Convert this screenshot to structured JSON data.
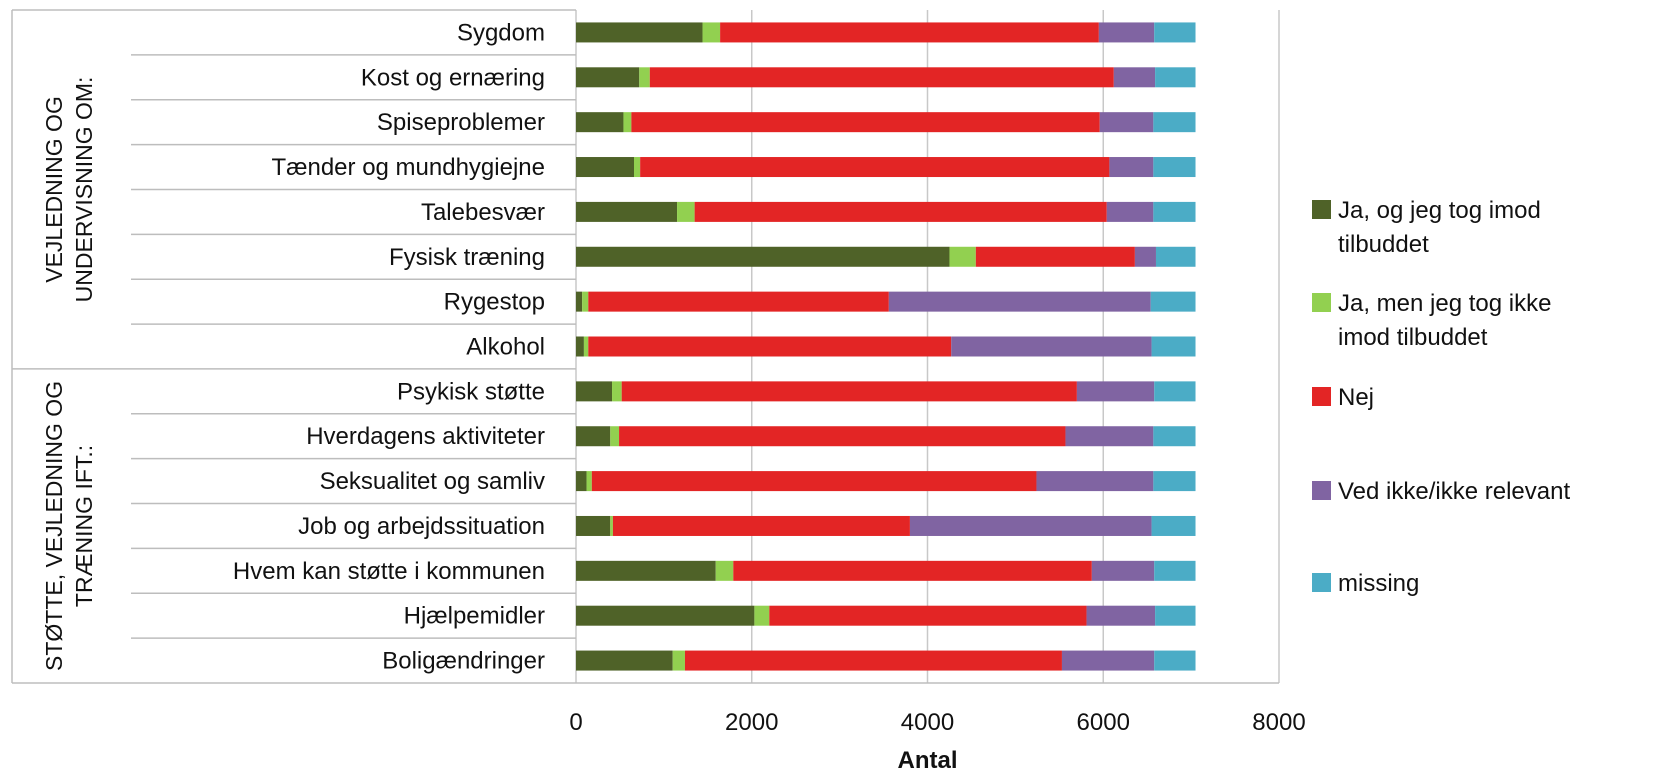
{
  "chart_data": {
    "type": "bar",
    "orientation": "horizontal",
    "stacked": true,
    "xlabel": "Antal",
    "xlim": [
      0,
      8000
    ],
    "xticks": [
      0,
      2000,
      4000,
      6000,
      8000
    ],
    "grid": true,
    "legend_position": "right",
    "groups": [
      {
        "label": "VEJLEDNING OG UNDERVISNING OM:",
        "categories": [
          "Sygdom",
          "Kost og ernæring",
          "Spiseproblemer",
          "Tænder og mundhygiejne",
          "Talebesvær",
          "Fysisk træning",
          "Rygestop",
          "Alkohol"
        ]
      },
      {
        "label": "STØTTE, VEJLEDNING OG TRÆNING IFT.:",
        "categories": [
          "Psykisk støtte",
          "Hverdagens aktiviteter",
          "Seksualitet og samliv",
          "Job og arbejdssituation",
          "Hvem kan støtte i kommunen",
          "Hjælpemidler",
          "Boligændringer"
        ]
      }
    ],
    "categories": [
      "Sygdom",
      "Kost og ernæring",
      "Spiseproblemer",
      "Tænder og mundhygiejne",
      "Talebesvær",
      "Fysisk træning",
      "Rygestop",
      "Alkohol",
      "Psykisk støtte",
      "Hverdagens aktiviteter",
      "Seksualitet og samliv",
      "Job og arbejdssituation",
      "Hvem kan støtte i kommunen",
      "Hjælpemidler",
      "Boligændringer"
    ],
    "series": [
      {
        "name": "Ja, og jeg tog imod tilbuddet",
        "color": "#4f6228",
        "values": [
          1440,
          720,
          540,
          660,
          1150,
          4250,
          70,
          90,
          410,
          390,
          120,
          390,
          1590,
          2030,
          1100
        ]
      },
      {
        "name": "Ja, men jeg tog ikke imod tilbuddet",
        "color": "#92d050",
        "values": [
          200,
          120,
          90,
          70,
          200,
          300,
          70,
          50,
          110,
          100,
          60,
          30,
          200,
          170,
          140
        ]
      },
      {
        "name": "Nej",
        "color": "#e32525",
        "values": [
          4310,
          5280,
          5330,
          5340,
          4690,
          1810,
          3420,
          4130,
          5180,
          5080,
          5060,
          3380,
          4080,
          3610,
          4290
        ]
      },
      {
        "name": "Ved ikke/ikke relevant",
        "color": "#8064a2",
        "values": [
          630,
          470,
          610,
          500,
          530,
          240,
          2980,
          2280,
          880,
          1000,
          1330,
          2750,
          710,
          780,
          1050
        ]
      },
      {
        "name": "missing",
        "color": "#4bacc6",
        "values": [
          470,
          460,
          480,
          480,
          480,
          450,
          510,
          500,
          470,
          480,
          480,
          500,
          470,
          460,
          470
        ]
      }
    ]
  }
}
